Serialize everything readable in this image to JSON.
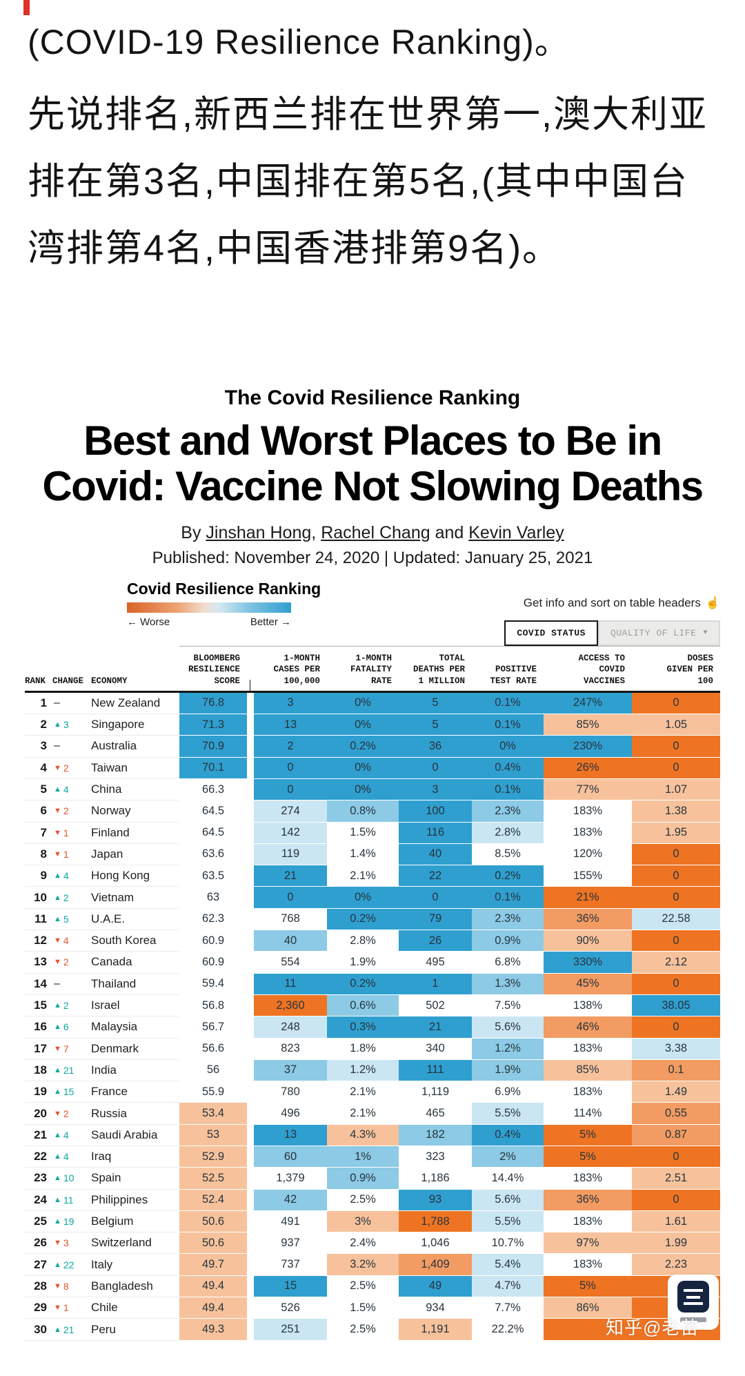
{
  "post": {
    "line1": "(COVID-19 Resilience Ranking)。",
    "paragraph": "先说排名,新西兰排在世界第一,澳大利亚排在第3名,中国排在第5名,(其中中国台湾排第4名,中国香港排第9名)。"
  },
  "article": {
    "kicker": "The Covid Resilience Ranking",
    "title_line1": "Best and Worst Places to Be in",
    "title_line2": "Covid: Vaccine Not Slowing Deaths",
    "by": "By ",
    "authors": [
      "Jinshan Hong",
      "Rachel Chang",
      "Kevin Varley"
    ],
    "sep1": ", ",
    "sep2": " and ",
    "dates": "Published: November 24, 2020 | Updated: January 25, 2021"
  },
  "chart": {
    "title": "Covid Resilience Ranking",
    "legend_worse": "← Worse",
    "legend_better": "Better →",
    "hint": "Get info and sort on table headers",
    "hint_icon": "☝",
    "tabs": {
      "covid_status": "COVID STATUS",
      "quality_of_life": "QUALITY OF LIFE",
      "qol_arrow": "▼"
    },
    "left_headers": [
      "RANK",
      "CHANGE",
      "ECONOMY"
    ],
    "numeric_headers": [
      [
        "BLOOMBERG",
        "RESILIENCE",
        "SCORE"
      ],
      [
        "1-MONTH",
        "CASES PER",
        "100,000"
      ],
      [
        "1-MONTH",
        "FATALITY",
        "RATE"
      ],
      [
        "TOTAL",
        "DEATHS PER",
        "1 MILLION"
      ],
      [
        "POSITIVE",
        "TEST RATE"
      ],
      [
        "ACCESS TO",
        "COVID",
        "VACCINES"
      ],
      [
        "DOSES",
        "GIVEN PER",
        "100"
      ]
    ],
    "col_keys": [
      "score",
      "cases",
      "fatality",
      "deaths",
      "test-rate",
      "vaccines",
      "doses"
    ],
    "colors": {
      "b3": "#2f9fd0",
      "b2": "#8ccae5",
      "b1": "#cbe6f3",
      "w": "#ffffff",
      "o1": "#f7c29b",
      "o2": "#f29b62",
      "o3": "#ee7423"
    },
    "change_colors": {
      "up": "#0ba79d",
      "down": "#e4532b"
    }
  },
  "chart_data": {
    "type": "table",
    "title": "Covid Resilience Ranking",
    "legend": "orange = worse, blue = better",
    "columns": [
      "RANK",
      "CHANGE",
      "ECONOMY",
      "BLOOMBERG RESILIENCE SCORE",
      "1-MONTH CASES PER 100,000",
      "1-MONTH FATALITY RATE",
      "TOTAL DEATHS PER 1 MILLION",
      "POSITIVE TEST RATE",
      "ACCESS TO COVID VACCINES",
      "DOSES GIVEN PER 100"
    ],
    "rows": [
      {
        "rank": "1",
        "change": [
          "none",
          ""
        ],
        "economy": "New Zealand",
        "cells": [
          [
            "76.8",
            "b3"
          ],
          [
            "3",
            "b3"
          ],
          [
            "0%",
            "b3"
          ],
          [
            "5",
            "b3"
          ],
          [
            "0.1%",
            "b3"
          ],
          [
            "247%",
            "b3"
          ],
          [
            "0",
            "o3"
          ]
        ]
      },
      {
        "rank": "2",
        "change": [
          "up",
          "3"
        ],
        "economy": "Singapore",
        "cells": [
          [
            "71.3",
            "b3"
          ],
          [
            "13",
            "b3"
          ],
          [
            "0%",
            "b3"
          ],
          [
            "5",
            "b3"
          ],
          [
            "0.1%",
            "b3"
          ],
          [
            "85%",
            "o1"
          ],
          [
            "1.05",
            "o1"
          ]
        ]
      },
      {
        "rank": "3",
        "change": [
          "none",
          ""
        ],
        "economy": "Australia",
        "cells": [
          [
            "70.9",
            "b3"
          ],
          [
            "2",
            "b3"
          ],
          [
            "0.2%",
            "b3"
          ],
          [
            "36",
            "b3"
          ],
          [
            "0%",
            "b3"
          ],
          [
            "230%",
            "b3"
          ],
          [
            "0",
            "o3"
          ]
        ]
      },
      {
        "rank": "4",
        "change": [
          "down",
          "2"
        ],
        "economy": "Taiwan",
        "cells": [
          [
            "70.1",
            "b3"
          ],
          [
            "0",
            "b3"
          ],
          [
            "0%",
            "b3"
          ],
          [
            "0",
            "b3"
          ],
          [
            "0.4%",
            "b3"
          ],
          [
            "26%",
            "o3"
          ],
          [
            "0",
            "o3"
          ]
        ]
      },
      {
        "rank": "5",
        "change": [
          "up",
          "4"
        ],
        "economy": "China",
        "cells": [
          [
            "66.3",
            "w"
          ],
          [
            "0",
            "b3"
          ],
          [
            "0%",
            "b3"
          ],
          [
            "3",
            "b3"
          ],
          [
            "0.1%",
            "b3"
          ],
          [
            "77%",
            "o1"
          ],
          [
            "1.07",
            "o1"
          ]
        ]
      },
      {
        "rank": "6",
        "change": [
          "down",
          "2"
        ],
        "economy": "Norway",
        "cells": [
          [
            "64.5",
            "w"
          ],
          [
            "274",
            "b1"
          ],
          [
            "0.8%",
            "b2"
          ],
          [
            "100",
            "b3"
          ],
          [
            "2.3%",
            "b2"
          ],
          [
            "183%",
            "w"
          ],
          [
            "1.38",
            "o1"
          ]
        ]
      },
      {
        "rank": "7",
        "change": [
          "down",
          "1"
        ],
        "economy": "Finland",
        "cells": [
          [
            "64.5",
            "w"
          ],
          [
            "142",
            "b1"
          ],
          [
            "1.5%",
            "w"
          ],
          [
            "116",
            "b3"
          ],
          [
            "2.8%",
            "b1"
          ],
          [
            "183%",
            "w"
          ],
          [
            "1.95",
            "o1"
          ]
        ]
      },
      {
        "rank": "8",
        "change": [
          "down",
          "1"
        ],
        "economy": "Japan",
        "cells": [
          [
            "63.6",
            "w"
          ],
          [
            "119",
            "b1"
          ],
          [
            "1.4%",
            "w"
          ],
          [
            "40",
            "b3"
          ],
          [
            "8.5%",
            "w"
          ],
          [
            "120%",
            "w"
          ],
          [
            "0",
            "o3"
          ]
        ]
      },
      {
        "rank": "9",
        "change": [
          "up",
          "4"
        ],
        "economy": "Hong Kong",
        "cells": [
          [
            "63.5",
            "w"
          ],
          [
            "21",
            "b3"
          ],
          [
            "2.1%",
            "w"
          ],
          [
            "22",
            "b3"
          ],
          [
            "0.2%",
            "b3"
          ],
          [
            "155%",
            "w"
          ],
          [
            "0",
            "o3"
          ]
        ]
      },
      {
        "rank": "10",
        "change": [
          "up",
          "2"
        ],
        "economy": "Vietnam",
        "cells": [
          [
            "63",
            "w"
          ],
          [
            "0",
            "b3"
          ],
          [
            "0%",
            "b3"
          ],
          [
            "0",
            "b3"
          ],
          [
            "0.1%",
            "b3"
          ],
          [
            "21%",
            "o3"
          ],
          [
            "0",
            "o3"
          ]
        ]
      },
      {
        "rank": "11",
        "change": [
          "up",
          "5"
        ],
        "economy": "U.A.E.",
        "cells": [
          [
            "62.3",
            "w"
          ],
          [
            "768",
            "w"
          ],
          [
            "0.2%",
            "b3"
          ],
          [
            "79",
            "b3"
          ],
          [
            "2.3%",
            "b2"
          ],
          [
            "36%",
            "o2"
          ],
          [
            "22.58",
            "b1"
          ]
        ]
      },
      {
        "rank": "12",
        "change": [
          "down",
          "4"
        ],
        "economy": "South Korea",
        "cells": [
          [
            "60.9",
            "w"
          ],
          [
            "40",
            "b2"
          ],
          [
            "2.8%",
            "w"
          ],
          [
            "26",
            "b3"
          ],
          [
            "0.9%",
            "b2"
          ],
          [
            "90%",
            "o1"
          ],
          [
            "0",
            "o3"
          ]
        ]
      },
      {
        "rank": "13",
        "change": [
          "down",
          "2"
        ],
        "economy": "Canada",
        "cells": [
          [
            "60.9",
            "w"
          ],
          [
            "554",
            "w"
          ],
          [
            "1.9%",
            "w"
          ],
          [
            "495",
            "w"
          ],
          [
            "6.8%",
            "w"
          ],
          [
            "330%",
            "b3"
          ],
          [
            "2.12",
            "o1"
          ]
        ]
      },
      {
        "rank": "14",
        "change": [
          "none",
          ""
        ],
        "economy": "Thailand",
        "cells": [
          [
            "59.4",
            "w"
          ],
          [
            "11",
            "b3"
          ],
          [
            "0.2%",
            "b3"
          ],
          [
            "1",
            "b3"
          ],
          [
            "1.3%",
            "b2"
          ],
          [
            "45%",
            "o2"
          ],
          [
            "0",
            "o3"
          ]
        ]
      },
      {
        "rank": "15",
        "change": [
          "up",
          "2"
        ],
        "economy": "Israel",
        "cells": [
          [
            "56.8",
            "w"
          ],
          [
            "2,360",
            "o3"
          ],
          [
            "0.6%",
            "b2"
          ],
          [
            "502",
            "w"
          ],
          [
            "7.5%",
            "w"
          ],
          [
            "138%",
            "w"
          ],
          [
            "38.05",
            "b3"
          ]
        ]
      },
      {
        "rank": "16",
        "change": [
          "up",
          "6"
        ],
        "economy": "Malaysia",
        "cells": [
          [
            "56.7",
            "w"
          ],
          [
            "248",
            "b1"
          ],
          [
            "0.3%",
            "b3"
          ],
          [
            "21",
            "b3"
          ],
          [
            "5.6%",
            "b1"
          ],
          [
            "46%",
            "o2"
          ],
          [
            "0",
            "o3"
          ]
        ]
      },
      {
        "rank": "17",
        "change": [
          "down",
          "7"
        ],
        "economy": "Denmark",
        "cells": [
          [
            "56.6",
            "w"
          ],
          [
            "823",
            "w"
          ],
          [
            "1.8%",
            "w"
          ],
          [
            "340",
            "w"
          ],
          [
            "1.2%",
            "b2"
          ],
          [
            "183%",
            "w"
          ],
          [
            "3.38",
            "b1"
          ]
        ]
      },
      {
        "rank": "18",
        "change": [
          "up",
          "21"
        ],
        "economy": "India",
        "cells": [
          [
            "56",
            "w"
          ],
          [
            "37",
            "b2"
          ],
          [
            "1.2%",
            "b1"
          ],
          [
            "111",
            "b3"
          ],
          [
            "1.9%",
            "b2"
          ],
          [
            "85%",
            "o1"
          ],
          [
            "0.1",
            "o2"
          ]
        ]
      },
      {
        "rank": "19",
        "change": [
          "up",
          "15"
        ],
        "economy": "France",
        "cells": [
          [
            "55.9",
            "w"
          ],
          [
            "780",
            "w"
          ],
          [
            "2.1%",
            "w"
          ],
          [
            "1,119",
            "w"
          ],
          [
            "6.9%",
            "w"
          ],
          [
            "183%",
            "w"
          ],
          [
            "1.49",
            "o1"
          ]
        ]
      },
      {
        "rank": "20",
        "change": [
          "down",
          "2"
        ],
        "economy": "Russia",
        "cells": [
          [
            "53.4",
            "o1"
          ],
          [
            "496",
            "w"
          ],
          [
            "2.1%",
            "w"
          ],
          [
            "465",
            "w"
          ],
          [
            "5.5%",
            "b1"
          ],
          [
            "114%",
            "w"
          ],
          [
            "0.55",
            "o2"
          ]
        ]
      },
      {
        "rank": "21",
        "change": [
          "up",
          "4"
        ],
        "economy": "Saudi Arabia",
        "cells": [
          [
            "53",
            "o1"
          ],
          [
            "13",
            "b3"
          ],
          [
            "4.3%",
            "o1"
          ],
          [
            "182",
            "b2"
          ],
          [
            "0.4%",
            "b3"
          ],
          [
            "5%",
            "o3"
          ],
          [
            "0.87",
            "o2"
          ]
        ]
      },
      {
        "rank": "22",
        "change": [
          "up",
          "4"
        ],
        "economy": "Iraq",
        "cells": [
          [
            "52.9",
            "o1"
          ],
          [
            "60",
            "b2"
          ],
          [
            "1%",
            "b2"
          ],
          [
            "323",
            "w"
          ],
          [
            "2%",
            "b2"
          ],
          [
            "5%",
            "o3"
          ],
          [
            "0",
            "o3"
          ]
        ]
      },
      {
        "rank": "23",
        "change": [
          "up",
          "10"
        ],
        "economy": "Spain",
        "cells": [
          [
            "52.5",
            "o1"
          ],
          [
            "1,379",
            "w"
          ],
          [
            "0.9%",
            "b2"
          ],
          [
            "1,186",
            "w"
          ],
          [
            "14.4%",
            "w"
          ],
          [
            "183%",
            "w"
          ],
          [
            "2.51",
            "o1"
          ]
        ]
      },
      {
        "rank": "24",
        "change": [
          "up",
          "11"
        ],
        "economy": "Philippines",
        "cells": [
          [
            "52.4",
            "o1"
          ],
          [
            "42",
            "b2"
          ],
          [
            "2.5%",
            "w"
          ],
          [
            "93",
            "b3"
          ],
          [
            "5.6%",
            "b1"
          ],
          [
            "36%",
            "o2"
          ],
          [
            "0",
            "o3"
          ]
        ]
      },
      {
        "rank": "25",
        "change": [
          "up",
          "19"
        ],
        "economy": "Belgium",
        "cells": [
          [
            "50.6",
            "o1"
          ],
          [
            "491",
            "w"
          ],
          [
            "3%",
            "o1"
          ],
          [
            "1,788",
            "o3"
          ],
          [
            "5.5%",
            "b1"
          ],
          [
            "183%",
            "w"
          ],
          [
            "1.61",
            "o1"
          ]
        ]
      },
      {
        "rank": "26",
        "change": [
          "down",
          "3"
        ],
        "economy": "Switzerland",
        "cells": [
          [
            "50.6",
            "o1"
          ],
          [
            "937",
            "w"
          ],
          [
            "2.4%",
            "w"
          ],
          [
            "1,046",
            "w"
          ],
          [
            "10.7%",
            "w"
          ],
          [
            "97%",
            "o1"
          ],
          [
            "1.99",
            "o1"
          ]
        ]
      },
      {
        "rank": "27",
        "change": [
          "up",
          "22"
        ],
        "economy": "Italy",
        "cells": [
          [
            "49.7",
            "o1"
          ],
          [
            "737",
            "w"
          ],
          [
            "3.2%",
            "o1"
          ],
          [
            "1,409",
            "o2"
          ],
          [
            "5.4%",
            "b1"
          ],
          [
            "183%",
            "w"
          ],
          [
            "2.23",
            "o1"
          ]
        ]
      },
      {
        "rank": "28",
        "change": [
          "down",
          "8"
        ],
        "economy": "Bangladesh",
        "cells": [
          [
            "49.4",
            "o1"
          ],
          [
            "15",
            "b3"
          ],
          [
            "2.5%",
            "w"
          ],
          [
            "49",
            "b3"
          ],
          [
            "4.7%",
            "b1"
          ],
          [
            "5%",
            "o3"
          ],
          [
            "",
            "o3"
          ]
        ]
      },
      {
        "rank": "29",
        "change": [
          "down",
          "1"
        ],
        "economy": "Chile",
        "cells": [
          [
            "49.4",
            "o1"
          ],
          [
            "526",
            "w"
          ],
          [
            "1.5%",
            "w"
          ],
          [
            "934",
            "w"
          ],
          [
            "7.7%",
            "w"
          ],
          [
            "86%",
            "o1"
          ],
          [
            "",
            "o3"
          ]
        ]
      },
      {
        "rank": "30",
        "change": [
          "up",
          "21"
        ],
        "economy": "Peru",
        "cells": [
          [
            "49.3",
            "o1"
          ],
          [
            "251",
            "b1"
          ],
          [
            "2.5%",
            "w"
          ],
          [
            "1,191",
            "o1"
          ],
          [
            "22.2%",
            "w"
          ],
          [
            "",
            "o3"
          ],
          [
            "",
            "o3"
          ]
        ]
      }
    ]
  },
  "watermark": {
    "text": "知乎@老苗"
  }
}
